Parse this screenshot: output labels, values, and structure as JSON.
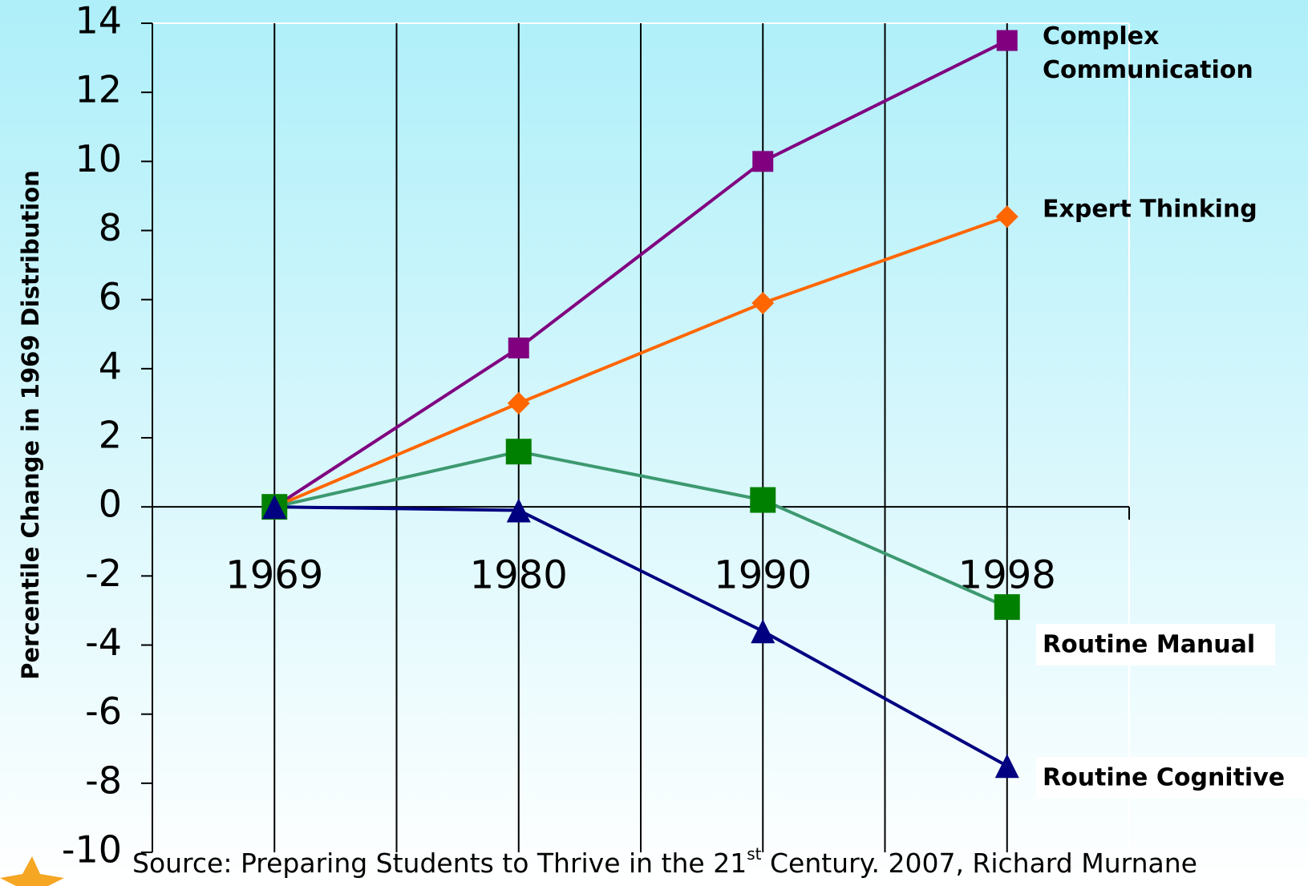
{
  "chart_data": {
    "type": "line",
    "y_label": "Percentile Change in 1969 Distribution",
    "categories": [
      "1969",
      "1980",
      "1990",
      "1998"
    ],
    "series": [
      {
        "name": "Complex Communication",
        "color": "#800080",
        "marker": "square",
        "values": [
          0,
          4.6,
          10,
          13.5
        ]
      },
      {
        "name": "Expert Thinking",
        "color": "#ff6600",
        "marker": "diamond",
        "values": [
          0,
          3,
          5.9,
          8.4
        ]
      },
      {
        "name": "Routine Manual",
        "color": "#3d9970",
        "marker_color": "#008000",
        "marker": "square",
        "values": [
          0,
          1.6,
          0.2,
          -2.9
        ]
      },
      {
        "name": "Routine Cognitive",
        "color": "#000080",
        "marker": "triangle",
        "values": [
          0,
          -0.1,
          -3.6,
          -7.5
        ]
      }
    ],
    "ylim": [
      -10,
      14
    ],
    "yticks": [
      -10,
      -8,
      -6,
      -4,
      -2,
      0,
      2,
      4,
      6,
      8,
      10,
      12,
      14
    ],
    "grid": true,
    "source": {
      "before": "Source: Preparing Students to Thrive in the 21",
      "sup": "st",
      "after": " Century. 2007, Richard Murnane"
    }
  }
}
